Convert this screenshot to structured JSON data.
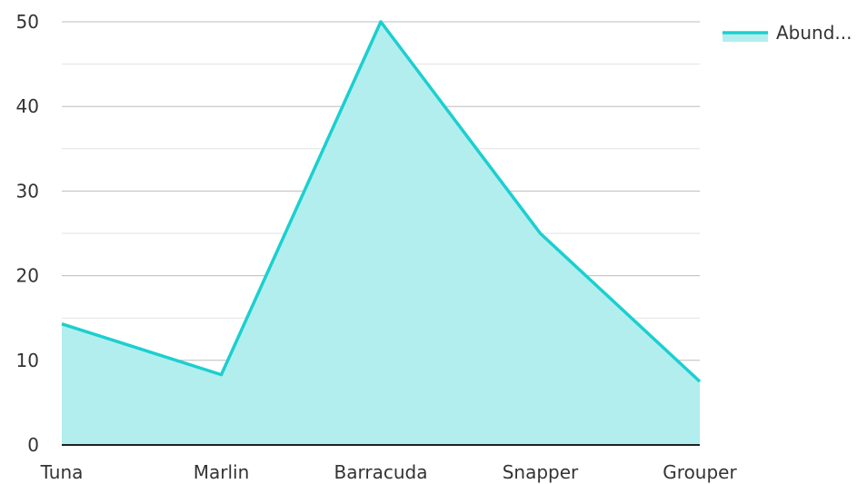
{
  "chart_data": {
    "type": "area",
    "categories": [
      "Tuna",
      "Marlin",
      "Barracuda",
      "Snapper",
      "Grouper"
    ],
    "series": [
      {
        "name": "Abund...",
        "values": [
          14.3,
          8.3,
          50,
          25,
          7.5
        ]
      }
    ],
    "ylim": [
      0,
      50
    ],
    "yticks": [
      "0",
      "10",
      "20",
      "30",
      "40",
      "50"
    ],
    "title": "",
    "xlabel": "",
    "ylabel": "",
    "grid": true,
    "legend": {
      "position": "top-right"
    },
    "colors": {
      "line": "#1ccfcf",
      "fill": "#b2eeee",
      "major_grid": "#bdbdbd",
      "minor_grid": "#e3e3e3",
      "axis": "#222222"
    }
  }
}
